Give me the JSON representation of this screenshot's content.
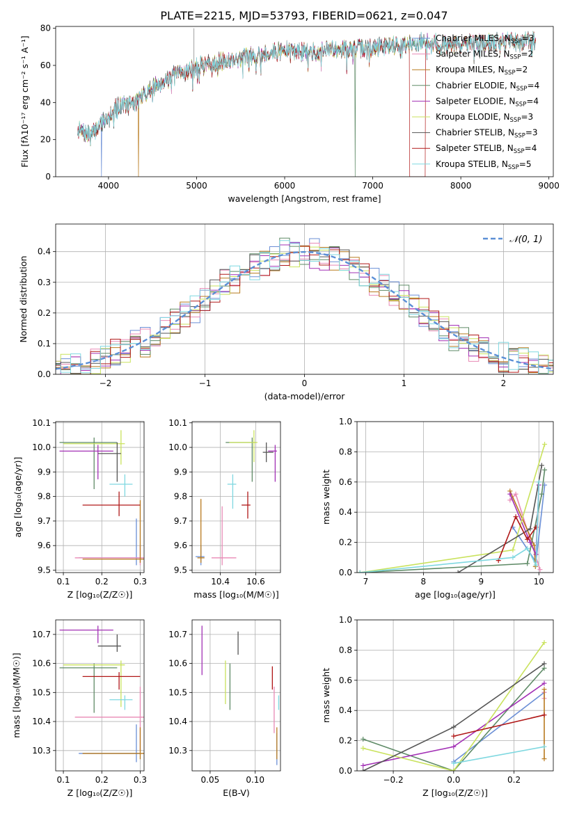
{
  "figure_title": "PLATE=2215, MJD=53793, FIBERID=0621, z=0.047",
  "legend": {
    "spectrum": [
      {
        "name": "Chabrier MILES, N",
        "sub": "SSP",
        "suffix": "=3",
        "color": "#6b8fd6"
      },
      {
        "name": "Salpeter MILES, N",
        "sub": "SSP",
        "suffix": "=2",
        "color": "#e889b5"
      },
      {
        "name": "Kroupa MILES, N",
        "sub": "SSP",
        "suffix": "=2",
        "color": "#b87a1e"
      },
      {
        "name": "Chabrier ELODIE, N",
        "sub": "SSP",
        "suffix": "=4",
        "color": "#5e8a66"
      },
      {
        "name": "Salpeter ELODIE, N",
        "sub": "SSP",
        "suffix": "=4",
        "color": "#a230b5"
      },
      {
        "name": "Kroupa ELODIE, N",
        "sub": "SSP",
        "suffix": "=3",
        "color": "#c9e25c"
      },
      {
        "name": "Chabrier STELIB, N",
        "sub": "SSP",
        "suffix": "=3",
        "color": "#555555"
      },
      {
        "name": "Salpeter STELIB, N",
        "sub": "SSP",
        "suffix": "=4",
        "color": "#b01818"
      },
      {
        "name": "Kroupa STELIB, N",
        "sub": "SSP",
        "suffix": "=5",
        "color": "#7fd8e0"
      }
    ],
    "gaussian": "𝒩(0, 1)"
  },
  "chart_data": [
    {
      "id": "spectrum",
      "type": "line",
      "xlabel": "wavelength [Angstrom, rest frame]",
      "ylabel": "Flux [fλ10⁻¹⁷ erg cm⁻² s⁻¹ A⁻¹]",
      "xlim": [
        3400,
        9050
      ],
      "ylim": [
        0,
        81
      ],
      "xticks": [
        4000,
        5000,
        6000,
        7000,
        8000,
        9000
      ],
      "yticks": [
        0,
        20,
        40,
        60,
        80
      ],
      "grid": false,
      "legend_position": "right",
      "wavelength_range": [
        3650,
        8850
      ],
      "continuum_knots": [
        [
          3650,
          25
        ],
        [
          3800,
          22
        ],
        [
          3950,
          31
        ],
        [
          4100,
          38
        ],
        [
          4300,
          40
        ],
        [
          4500,
          48
        ],
        [
          4700,
          54
        ],
        [
          4900,
          57
        ],
        [
          5100,
          61
        ],
        [
          5400,
          63
        ],
        [
          5700,
          66
        ],
        [
          6000,
          68
        ],
        [
          6300,
          67
        ],
        [
          6600,
          69
        ],
        [
          6900,
          69
        ],
        [
          7200,
          71
        ],
        [
          7400,
          71
        ],
        [
          7600,
          73
        ],
        [
          7900,
          71
        ],
        [
          8200,
          72
        ],
        [
          8500,
          73
        ],
        [
          8850,
          73
        ]
      ]
    },
    {
      "id": "residuals",
      "type": "histogram",
      "xlabel": "(data-model)/error",
      "ylabel": "Normed distribution",
      "xlim": [
        -2.5,
        2.5
      ],
      "ylim": [
        0,
        0.49
      ],
      "xticks": [
        -2,
        -1,
        0,
        1,
        2
      ],
      "yticks": [
        0.0,
        0.1,
        0.2,
        0.3,
        0.4
      ],
      "grid": true,
      "legend_position": "upper right",
      "bin_width": 0.1,
      "reference_curve": "gaussian mean 0 sigma 1"
    },
    {
      "id": "age-vs-Z",
      "type": "errorbar",
      "xlabel": "Z [log₁₀(Z/Z☉)]",
      "ylabel": "age  [log₁₀(age/yr)]",
      "xlim": [
        0.08,
        0.31
      ],
      "ylim": [
        9.49,
        10.105
      ],
      "xticks": [
        0.1,
        0.2,
        0.3
      ],
      "yticks": [
        9.5,
        9.6,
        9.7,
        9.8,
        9.9,
        10.0,
        10.1
      ],
      "grid": true,
      "points": [
        {
          "color": "#6b8fd6",
          "x": 0.29,
          "xerr": [
            0.14,
            0.3
          ],
          "y": 9.55,
          "yerr": [
            9.52,
            9.71
          ]
        },
        {
          "color": "#e889b5",
          "x": 0.3,
          "xerr": [
            0.13,
            0.31
          ],
          "y": 9.55,
          "yerr": [
            9.52,
            9.6
          ]
        },
        {
          "color": "#b87a1e",
          "x": 0.3,
          "xerr": [
            0.15,
            0.31
          ],
          "y": 9.545,
          "yerr": [
            9.53,
            9.785
          ]
        },
        {
          "color": "#5e8a66",
          "x": 0.18,
          "xerr": [
            0.09,
            0.24
          ],
          "y": 10.02,
          "yerr": [
            9.83,
            10.04
          ]
        },
        {
          "color": "#a230b5",
          "x": 0.19,
          "xerr": [
            0.09,
            0.23
          ],
          "y": 9.985,
          "yerr": [
            9.87,
            10.01
          ]
        },
        {
          "color": "#c9e25c",
          "x": 0.25,
          "xerr": [
            0.1,
            0.26
          ],
          "y": 10.015,
          "yerr": [
            9.93,
            10.07
          ]
        },
        {
          "color": "#555555",
          "x": 0.24,
          "xerr": [
            0.19,
            0.25
          ],
          "y": 9.975,
          "yerr": [
            9.86,
            10.02
          ]
        },
        {
          "color": "#b01818",
          "x": 0.245,
          "xerr": [
            0.15,
            0.3
          ],
          "y": 9.765,
          "yerr": [
            9.72,
            9.82
          ]
        },
        {
          "color": "#7fd8e0",
          "x": 0.26,
          "xerr": [
            0.22,
            0.28
          ],
          "y": 9.85,
          "yerr": [
            9.8,
            9.89
          ]
        }
      ]
    },
    {
      "id": "age-vs-mass",
      "type": "errorbar",
      "xlabel": "mass [log₁₀(M/M☉)]",
      "ylabel": "",
      "xlim": [
        10.24,
        10.74
      ],
      "ylim": [
        9.49,
        10.105
      ],
      "xticks": [
        10.4,
        10.6
      ],
      "yticks": [
        9.5,
        9.6,
        9.7,
        9.8,
        9.9,
        10.0,
        10.1
      ],
      "grid": true,
      "points": [
        {
          "color": "#6b8fd6",
          "x": 10.29,
          "xerr": [
            10.26,
            10.31
          ],
          "y": 9.555,
          "yerr": [
            9.52,
            9.6
          ]
        },
        {
          "color": "#e889b5",
          "x": 10.41,
          "xerr": [
            10.35,
            10.49
          ],
          "y": 9.55,
          "yerr": [
            9.52,
            9.76
          ]
        },
        {
          "color": "#b87a1e",
          "x": 10.29,
          "xerr": [
            10.27,
            10.31
          ],
          "y": 9.55,
          "yerr": [
            9.53,
            9.79
          ]
        },
        {
          "color": "#5e8a66",
          "x": 10.58,
          "xerr": [
            10.43,
            10.6
          ],
          "y": 10.02,
          "yerr": [
            9.86,
            10.04
          ]
        },
        {
          "color": "#a230b5",
          "x": 10.71,
          "xerr": [
            10.67,
            10.72
          ],
          "y": 9.985,
          "yerr": [
            9.86,
            10.01
          ]
        },
        {
          "color": "#c9e25c",
          "x": 10.59,
          "xerr": [
            10.45,
            10.61
          ],
          "y": 10.02,
          "yerr": [
            9.94,
            10.07
          ]
        },
        {
          "color": "#555555",
          "x": 10.66,
          "xerr": [
            10.64,
            10.7
          ],
          "y": 9.98,
          "yerr": [
            9.94,
            10.02
          ]
        },
        {
          "color": "#b01818",
          "x": 10.555,
          "xerr": [
            10.52,
            10.57
          ],
          "y": 9.765,
          "yerr": [
            9.71,
            9.82
          ]
        },
        {
          "color": "#7fd8e0",
          "x": 10.47,
          "xerr": [
            10.44,
            10.49
          ],
          "y": 9.85,
          "yerr": [
            9.75,
            9.89
          ]
        }
      ]
    },
    {
      "id": "weight-vs-age",
      "type": "line",
      "xlabel": "age  [log₁₀(age/yr)]",
      "ylabel": "mass weight",
      "xlim": [
        6.85,
        10.25
      ],
      "ylim": [
        0,
        1.0
      ],
      "xticks": [
        7,
        8,
        9,
        10
      ],
      "yticks": [
        0.0,
        0.2,
        0.4,
        0.6,
        0.8,
        1.0
      ],
      "grid": true,
      "series": [
        {
          "color": "#6b8fd6",
          "x": [
            9.55,
            9.95,
            10.1
          ],
          "y": [
            0.3,
            0.07,
            0.58
          ]
        },
        {
          "color": "#e889b5",
          "x": [
            9.5,
            9.6,
            10.02
          ],
          "y": [
            0.48,
            0.52,
            0.02
          ]
        },
        {
          "color": "#b87a1e",
          "x": [
            9.5,
            9.92,
            9.94
          ],
          "y": [
            0.54,
            0.18,
            0.04
          ]
        },
        {
          "color": "#5e8a66",
          "x": [
            6.9,
            9.8,
            10.05,
            10.1
          ],
          "y": [
            0.0,
            0.06,
            0.52,
            0.68
          ]
        },
        {
          "color": "#a230b5",
          "x": [
            9.5,
            9.85,
            9.95,
            10.0
          ],
          "y": [
            0.52,
            0.2,
            0.12,
            0.58
          ]
        },
        {
          "color": "#c9e25c",
          "x": [
            6.9,
            9.55,
            10.1
          ],
          "y": [
            0.0,
            0.15,
            0.85
          ]
        },
        {
          "color": "#555555",
          "x": [
            8.6,
            9.85,
            10.05
          ],
          "y": [
            0.0,
            0.29,
            0.71
          ]
        },
        {
          "color": "#b01818",
          "x": [
            9.3,
            9.6,
            9.8,
            9.95
          ],
          "y": [
            0.08,
            0.37,
            0.22,
            0.3
          ]
        },
        {
          "color": "#7fd8e0",
          "x": [
            6.9,
            9.55,
            9.8,
            9.95,
            10.0
          ],
          "y": [
            0.0,
            0.1,
            0.16,
            0.05,
            0.6
          ]
        }
      ]
    },
    {
      "id": "mass-vs-Z",
      "type": "errorbar",
      "xlabel": "Z [log₁₀(Z/Z☉)]",
      "ylabel": "mass [log₁₀(M/M☉)]",
      "xlim": [
        0.08,
        0.31
      ],
      "ylim": [
        10.23,
        10.75
      ],
      "xticks": [
        0.1,
        0.2,
        0.3
      ],
      "yticks": [
        10.3,
        10.4,
        10.5,
        10.6,
        10.7
      ],
      "grid": true,
      "points": [
        {
          "color": "#6b8fd6",
          "x": 0.29,
          "xerr": [
            0.14,
            0.3
          ],
          "y": 10.29,
          "yerr": [
            10.26,
            10.39
          ]
        },
        {
          "color": "#e889b5",
          "x": 0.3,
          "xerr": [
            0.13,
            0.31
          ],
          "y": 10.415,
          "yerr": [
            10.3,
            10.52
          ]
        },
        {
          "color": "#b87a1e",
          "x": 0.3,
          "xerr": [
            0.15,
            0.31
          ],
          "y": 10.29,
          "yerr": [
            10.27,
            10.38
          ]
        },
        {
          "color": "#5e8a66",
          "x": 0.18,
          "xerr": [
            0.09,
            0.24
          ],
          "y": 10.585,
          "yerr": [
            10.43,
            10.6
          ]
        },
        {
          "color": "#a230b5",
          "x": 0.19,
          "xerr": [
            0.09,
            0.23
          ],
          "y": 10.715,
          "yerr": [
            10.67,
            10.73
          ]
        },
        {
          "color": "#c9e25c",
          "x": 0.25,
          "xerr": [
            0.1,
            0.26
          ],
          "y": 10.595,
          "yerr": [
            10.45,
            10.61
          ]
        },
        {
          "color": "#555555",
          "x": 0.24,
          "xerr": [
            0.19,
            0.25
          ],
          "y": 10.66,
          "yerr": [
            10.64,
            10.7
          ]
        },
        {
          "color": "#b01818",
          "x": 0.245,
          "xerr": [
            0.15,
            0.3
          ],
          "y": 10.555,
          "yerr": [
            10.51,
            10.57
          ]
        },
        {
          "color": "#7fd8e0",
          "x": 0.26,
          "xerr": [
            0.22,
            0.28
          ],
          "y": 10.475,
          "yerr": [
            10.44,
            10.49
          ]
        }
      ]
    },
    {
      "id": "mass-vs-ebv",
      "type": "errorbar",
      "xlabel": "E(B-V)",
      "ylabel": "",
      "xlim": [
        0.03,
        0.128
      ],
      "ylim": [
        10.23,
        10.75
      ],
      "xticks": [
        0.05,
        0.1
      ],
      "xticklabels": [
        "0.05",
        "0.10"
      ],
      "yticks": [
        10.3,
        10.4,
        10.5,
        10.6,
        10.7
      ],
      "grid": true,
      "points": [
        {
          "color": "#6b8fd6",
          "x": 0.124,
          "y": 10.29,
          "yerr": [
            10.25,
            10.36
          ]
        },
        {
          "color": "#e889b5",
          "x": 0.121,
          "y": 10.415,
          "yerr": [
            10.36,
            10.52
          ]
        },
        {
          "color": "#b87a1e",
          "x": 0.124,
          "y": 10.29,
          "yerr": [
            10.27,
            10.38
          ]
        },
        {
          "color": "#5e8a66",
          "x": 0.072,
          "y": 10.52,
          "yerr": [
            10.44,
            10.6
          ]
        },
        {
          "color": "#a230b5",
          "x": 0.041,
          "y": 10.64,
          "yerr": [
            10.56,
            10.73
          ]
        },
        {
          "color": "#c9e25c",
          "x": 0.067,
          "y": 10.55,
          "yerr": [
            10.46,
            10.61
          ]
        },
        {
          "color": "#555555",
          "x": 0.081,
          "y": 10.67,
          "yerr": [
            10.63,
            10.71
          ]
        },
        {
          "color": "#b01818",
          "x": 0.119,
          "y": 10.55,
          "yerr": [
            10.51,
            10.59
          ]
        },
        {
          "color": "#7fd8e0",
          "x": 0.126,
          "y": 10.47,
          "yerr": [
            10.44,
            10.49
          ]
        }
      ]
    },
    {
      "id": "weight-vs-Z",
      "type": "line",
      "xlabel": "Z [log₁₀(Z/Z☉)]",
      "ylabel": "mass weight",
      "xlim": [
        -0.32,
        0.33
      ],
      "ylim": [
        0,
        1.0
      ],
      "xticks": [
        -0.2,
        0.0,
        0.2
      ],
      "xticklabels": [
        "−0.2",
        "0.0",
        "0.2"
      ],
      "yticks": [
        0.0,
        0.2,
        0.4,
        0.6,
        0.8,
        1.0
      ],
      "grid": true,
      "series": [
        {
          "color": "#6b8fd6",
          "x": [
            0.0,
            0.3
          ],
          "y": [
            0.06,
            0.52
          ]
        },
        {
          "color": "#e889b5",
          "x": [
            0.3,
            0.3
          ],
          "y": [
            0.48,
            0.52
          ]
        },
        {
          "color": "#b87a1e",
          "x": [
            0.3,
            0.3
          ],
          "y": [
            0.08,
            0.54
          ]
        },
        {
          "color": "#5e8a66",
          "x": [
            -0.3,
            0.0,
            0.3
          ],
          "y": [
            0.21,
            0.0,
            0.68
          ]
        },
        {
          "color": "#a230b5",
          "x": [
            -0.3,
            0.0,
            0.3
          ],
          "y": [
            0.035,
            0.16,
            0.58
          ]
        },
        {
          "color": "#c9e25c",
          "x": [
            -0.3,
            0.0,
            0.3
          ],
          "y": [
            0.15,
            0.0,
            0.85
          ]
        },
        {
          "color": "#555555",
          "x": [
            -0.3,
            0.0,
            0.3
          ],
          "y": [
            0.0,
            0.29,
            0.71
          ]
        },
        {
          "color": "#b01818",
          "x": [
            0.0,
            0.3
          ],
          "y": [
            0.23,
            0.37
          ]
        },
        {
          "color": "#7fd8e0",
          "x": [
            0.0,
            0.3
          ],
          "y": [
            0.05,
            0.16
          ]
        }
      ]
    }
  ]
}
